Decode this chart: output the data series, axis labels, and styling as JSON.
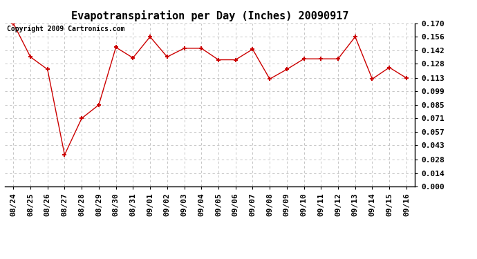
{
  "title": "Evapotranspiration per Day (Inches) 20090917",
  "copyright": "Copyright 2009 Cartronics.com",
  "x_labels": [
    "08/24",
    "08/25",
    "08/26",
    "08/27",
    "08/28",
    "08/29",
    "08/30",
    "08/31",
    "09/01",
    "09/02",
    "09/03",
    "09/04",
    "09/05",
    "09/06",
    "09/07",
    "09/08",
    "09/09",
    "09/10",
    "09/11",
    "09/12",
    "09/13",
    "09/14",
    "09/15",
    "09/16"
  ],
  "y_values": [
    0.17,
    0.135,
    0.122,
    0.033,
    0.071,
    0.085,
    0.145,
    0.134,
    0.156,
    0.135,
    0.144,
    0.144,
    0.132,
    0.132,
    0.143,
    0.112,
    0.122,
    0.133,
    0.133,
    0.133,
    0.156,
    0.112,
    0.124,
    0.113
  ],
  "line_color": "#cc0000",
  "marker": "+",
  "marker_size": 5,
  "bg_color": "#ffffff",
  "grid_color": "#bbbbbb",
  "ylim": [
    0.0,
    0.17
  ],
  "yticks": [
    0.0,
    0.014,
    0.028,
    0.043,
    0.057,
    0.071,
    0.085,
    0.099,
    0.113,
    0.128,
    0.142,
    0.156,
    0.17
  ],
  "title_fontsize": 11,
  "tick_fontsize": 8,
  "copyright_fontsize": 7,
  "fig_width": 6.9,
  "fig_height": 3.75,
  "dpi": 100
}
